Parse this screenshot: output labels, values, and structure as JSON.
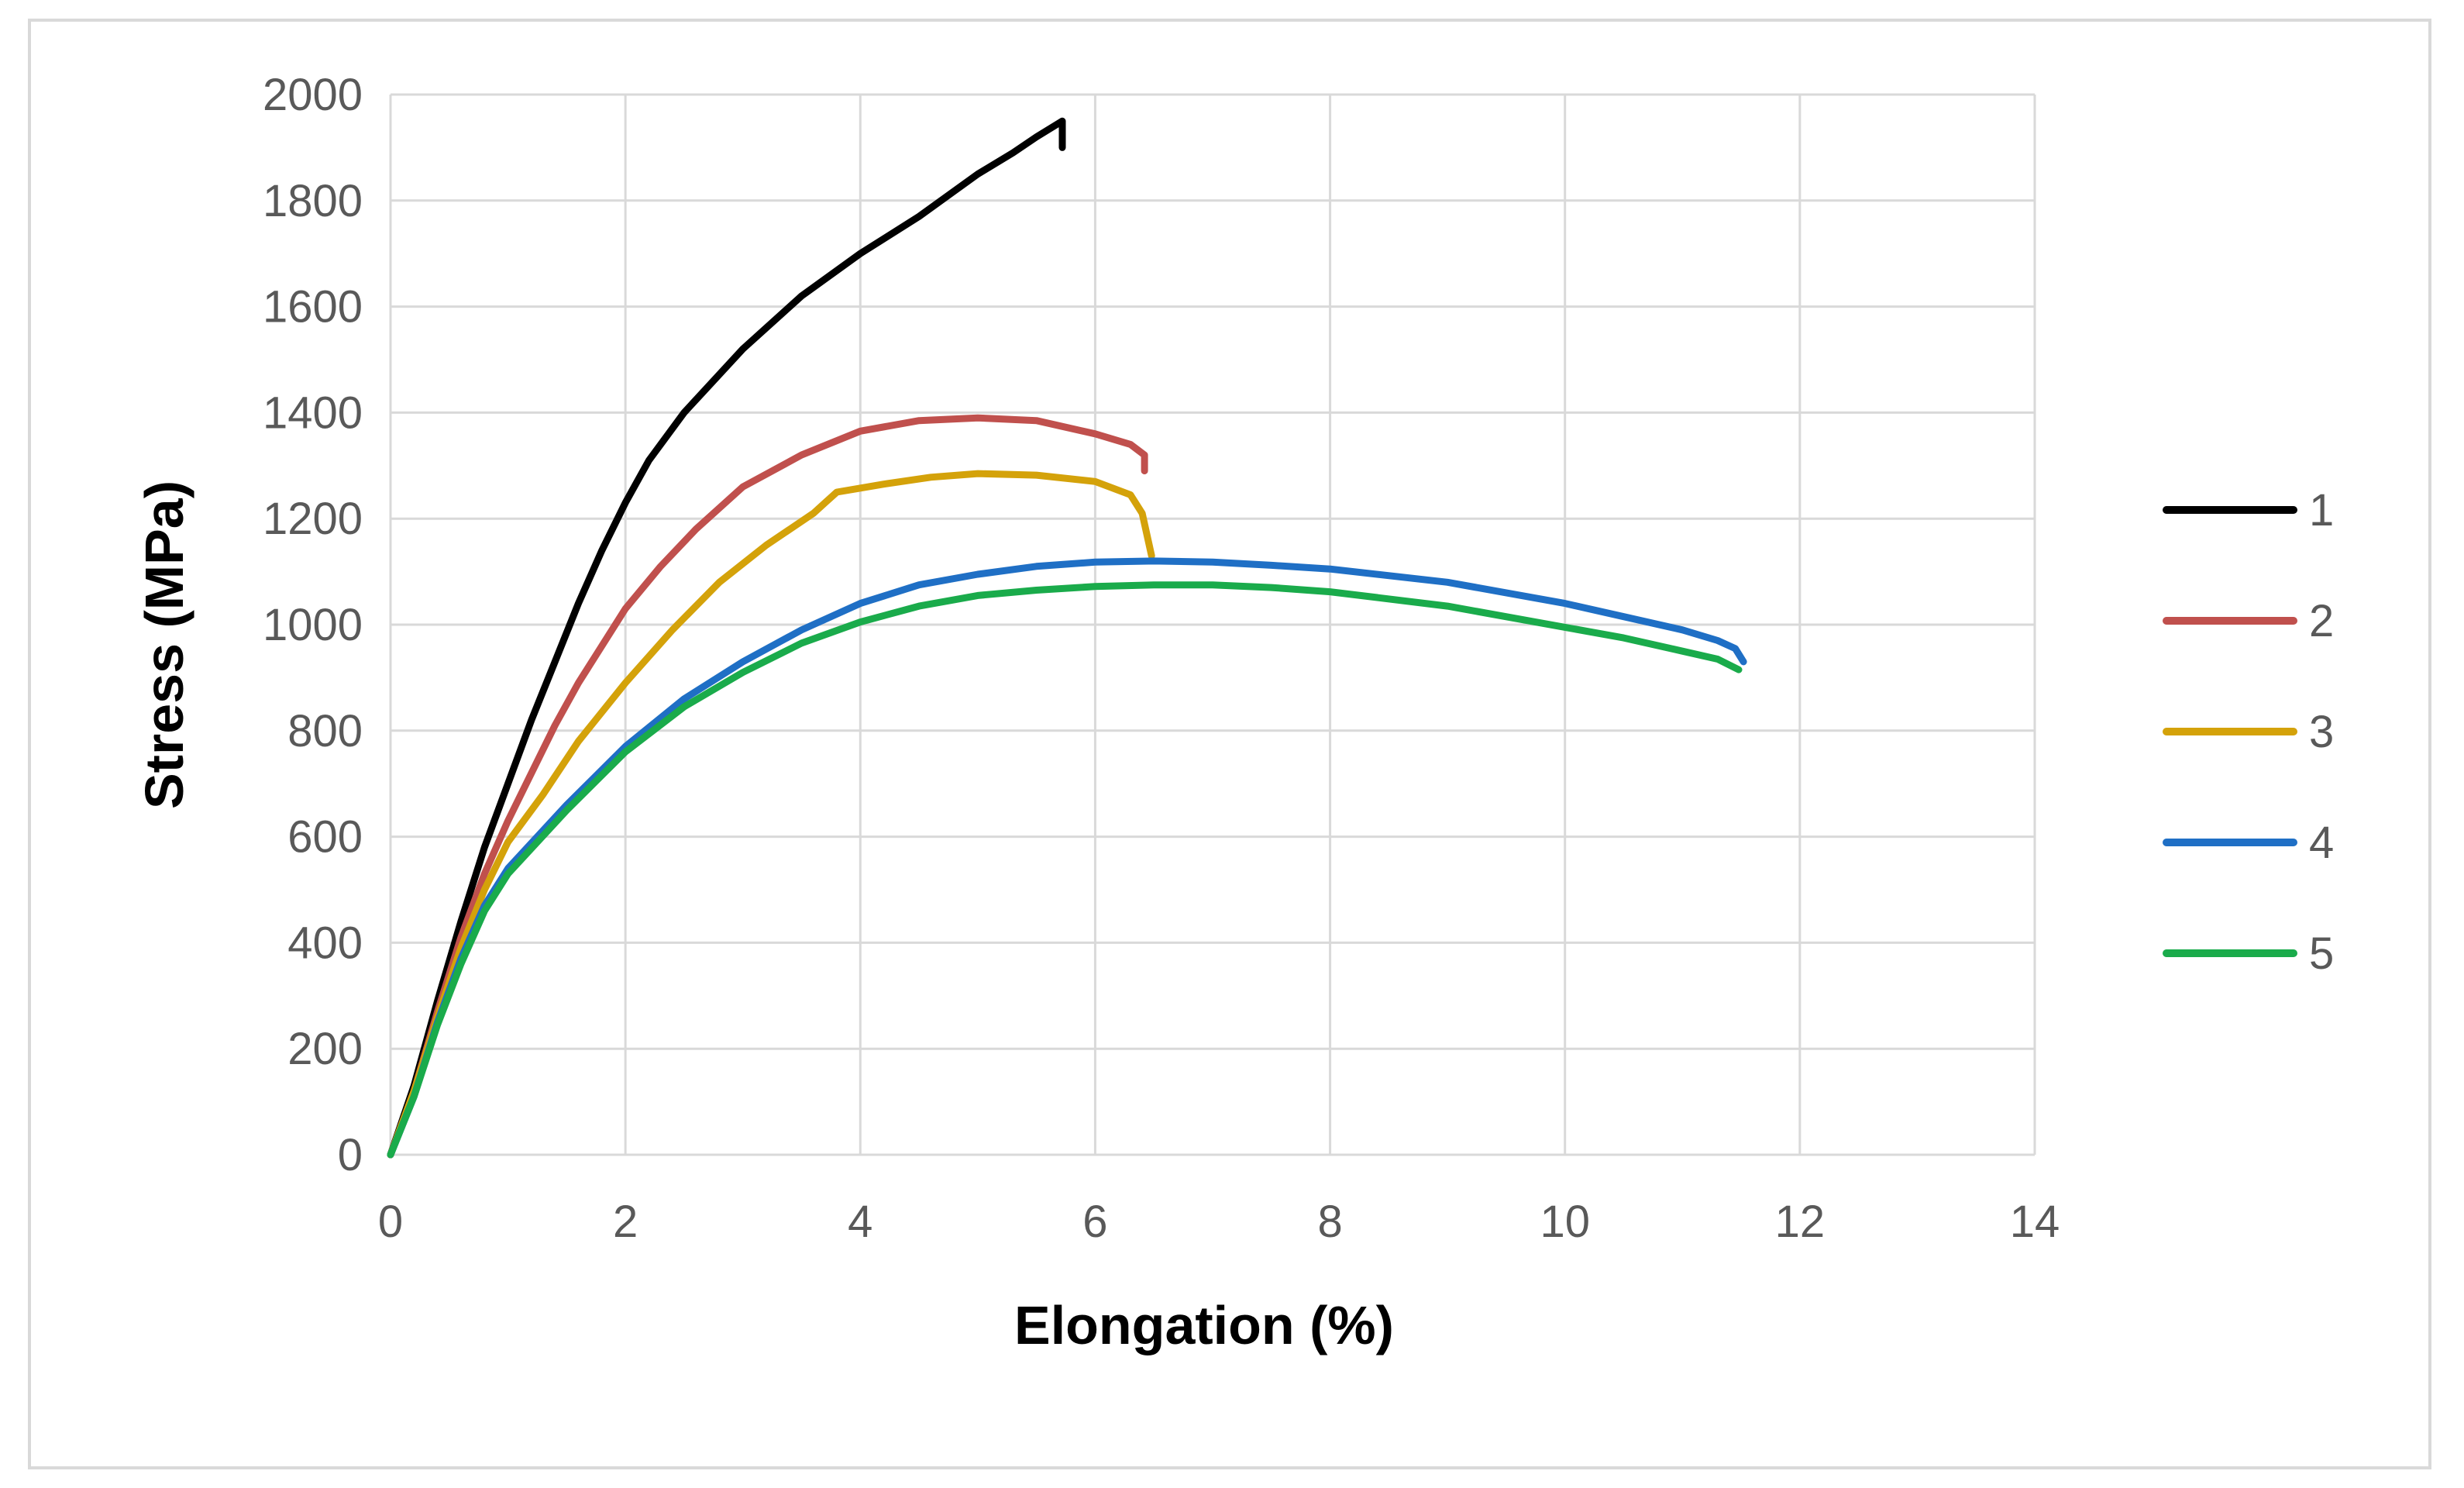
{
  "chart_data": {
    "type": "line",
    "title": "",
    "xlabel": "Elongation (%)",
    "ylabel": "Stress (MPa)",
    "xlim": [
      0,
      14
    ],
    "ylim": [
      0,
      2000
    ],
    "x_ticks": [
      0,
      2,
      4,
      6,
      8,
      10,
      12,
      14
    ],
    "y_ticks": [
      0,
      200,
      400,
      600,
      800,
      1000,
      1200,
      1400,
      1600,
      1800,
      2000
    ],
    "grid": true,
    "legend_position": "right",
    "series": [
      {
        "name": "1",
        "color": "#000000",
        "points": [
          [
            0,
            0
          ],
          [
            0.2,
            130
          ],
          [
            0.4,
            290
          ],
          [
            0.6,
            440
          ],
          [
            0.8,
            580
          ],
          [
            1.0,
            700
          ],
          [
            1.2,
            820
          ],
          [
            1.4,
            930
          ],
          [
            1.6,
            1040
          ],
          [
            1.8,
            1140
          ],
          [
            2.0,
            1230
          ],
          [
            2.2,
            1310
          ],
          [
            2.5,
            1400
          ],
          [
            3.0,
            1520
          ],
          [
            3.5,
            1620
          ],
          [
            4.0,
            1700
          ],
          [
            4.5,
            1770
          ],
          [
            5.0,
            1850
          ],
          [
            5.3,
            1890
          ],
          [
            5.5,
            1920
          ],
          [
            5.72,
            1950
          ],
          [
            5.72,
            1900
          ]
        ]
      },
      {
        "name": "2",
        "color": "#c0504d",
        "points": [
          [
            0,
            0
          ],
          [
            0.2,
            120
          ],
          [
            0.4,
            270
          ],
          [
            0.6,
            410
          ],
          [
            0.8,
            530
          ],
          [
            1.0,
            630
          ],
          [
            1.2,
            720
          ],
          [
            1.4,
            810
          ],
          [
            1.6,
            890
          ],
          [
            1.8,
            960
          ],
          [
            2.0,
            1030
          ],
          [
            2.3,
            1110
          ],
          [
            2.6,
            1180
          ],
          [
            3.0,
            1260
          ],
          [
            3.5,
            1320
          ],
          [
            4.0,
            1365
          ],
          [
            4.5,
            1385
          ],
          [
            5.0,
            1390
          ],
          [
            5.5,
            1385
          ],
          [
            6.0,
            1360
          ],
          [
            6.3,
            1340
          ],
          [
            6.42,
            1320
          ],
          [
            6.42,
            1290
          ]
        ]
      },
      {
        "name": "3",
        "color": "#d4a20a",
        "points": [
          [
            0,
            0
          ],
          [
            0.2,
            120
          ],
          [
            0.4,
            260
          ],
          [
            0.6,
            390
          ],
          [
            0.8,
            500
          ],
          [
            1.0,
            590
          ],
          [
            1.3,
            680
          ],
          [
            1.6,
            780
          ],
          [
            2.0,
            890
          ],
          [
            2.4,
            990
          ],
          [
            2.8,
            1080
          ],
          [
            3.2,
            1150
          ],
          [
            3.6,
            1210
          ],
          [
            3.7,
            1230
          ],
          [
            3.8,
            1250
          ],
          [
            4.2,
            1265
          ],
          [
            4.6,
            1278
          ],
          [
            5.0,
            1285
          ],
          [
            5.5,
            1282
          ],
          [
            6.0,
            1270
          ],
          [
            6.3,
            1245
          ],
          [
            6.4,
            1210
          ],
          [
            6.48,
            1130
          ]
        ]
      },
      {
        "name": "4",
        "color": "#1f6fc5",
        "points": [
          [
            0,
            0
          ],
          [
            0.2,
            110
          ],
          [
            0.4,
            250
          ],
          [
            0.6,
            370
          ],
          [
            0.8,
            470
          ],
          [
            1.0,
            540
          ],
          [
            1.5,
            660
          ],
          [
            2.0,
            770
          ],
          [
            2.5,
            860
          ],
          [
            3.0,
            930
          ],
          [
            3.5,
            990
          ],
          [
            4.0,
            1040
          ],
          [
            4.5,
            1075
          ],
          [
            5.0,
            1095
          ],
          [
            5.5,
            1110
          ],
          [
            6.0,
            1118
          ],
          [
            6.5,
            1120
          ],
          [
            7.0,
            1118
          ],
          [
            7.5,
            1112
          ],
          [
            8.0,
            1105
          ],
          [
            9.0,
            1080
          ],
          [
            10.0,
            1040
          ],
          [
            10.5,
            1015
          ],
          [
            11.0,
            990
          ],
          [
            11.3,
            970
          ],
          [
            11.45,
            955
          ],
          [
            11.52,
            930
          ]
        ]
      },
      {
        "name": "5",
        "color": "#1aab4b",
        "points": [
          [
            0,
            0
          ],
          [
            0.2,
            110
          ],
          [
            0.4,
            245
          ],
          [
            0.6,
            360
          ],
          [
            0.8,
            460
          ],
          [
            1.0,
            530
          ],
          [
            1.5,
            650
          ],
          [
            2.0,
            760
          ],
          [
            2.5,
            845
          ],
          [
            3.0,
            910
          ],
          [
            3.5,
            965
          ],
          [
            4.0,
            1005
          ],
          [
            4.5,
            1035
          ],
          [
            5.0,
            1055
          ],
          [
            5.5,
            1065
          ],
          [
            6.0,
            1072
          ],
          [
            6.5,
            1075
          ],
          [
            7.0,
            1075
          ],
          [
            7.5,
            1070
          ],
          [
            8.0,
            1062
          ],
          [
            9.0,
            1035
          ],
          [
            10.0,
            995
          ],
          [
            10.5,
            975
          ],
          [
            11.0,
            950
          ],
          [
            11.3,
            935
          ],
          [
            11.48,
            915
          ]
        ]
      }
    ]
  }
}
